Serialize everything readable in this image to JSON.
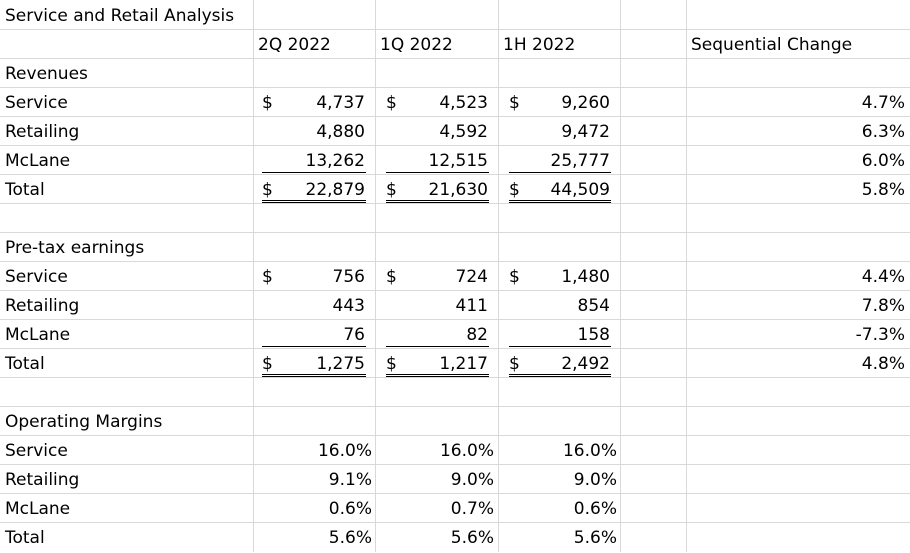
{
  "title": "Service and Retail Analysis",
  "headers": {
    "c1": "2Q 2022",
    "c2": "1Q 2022",
    "c3": "1H 2022",
    "c5": "Sequential Change"
  },
  "currency_symbol": "$",
  "revenues": {
    "heading": "Revenues",
    "rows": [
      {
        "label": "Service",
        "q2": "4,737",
        "q1": "4,523",
        "h1": "9,260",
        "chg": "4.7%"
      },
      {
        "label": "Retailing",
        "q2": "4,880",
        "q1": "4,592",
        "h1": "9,472",
        "chg": "6.3%"
      },
      {
        "label": "McLane",
        "q2": "13,262",
        "q1": "12,515",
        "h1": "25,777",
        "chg": "6.0%"
      },
      {
        "label": "Total",
        "q2": "22,879",
        "q1": "21,630",
        "h1": "44,509",
        "chg": "5.8%"
      }
    ]
  },
  "pretax": {
    "heading": "Pre-tax earnings",
    "rows": [
      {
        "label": "Service",
        "q2": "756",
        "q1": "724",
        "h1": "1,480",
        "chg": "4.4%"
      },
      {
        "label": "Retailing",
        "q2": "443",
        "q1": "411",
        "h1": "854",
        "chg": "7.8%"
      },
      {
        "label": "McLane",
        "q2": "76",
        "q1": "82",
        "h1": "158",
        "chg": "-7.3%"
      },
      {
        "label": "Total",
        "q2": "1,275",
        "q1": "1,217",
        "h1": "2,492",
        "chg": "4.8%"
      }
    ]
  },
  "margins": {
    "heading": "Operating Margins",
    "rows": [
      {
        "label": "Service",
        "q2": "16.0%",
        "q1": "16.0%",
        "h1": "16.0%"
      },
      {
        "label": "Retailing",
        "q2": "9.1%",
        "q1": "9.0%",
        "h1": "9.0%"
      },
      {
        "label": "McLane",
        "q2": "0.6%",
        "q1": "0.7%",
        "h1": "0.6%"
      },
      {
        "label": "Total",
        "q2": "5.6%",
        "q1": "5.6%",
        "h1": "5.6%"
      }
    ]
  }
}
